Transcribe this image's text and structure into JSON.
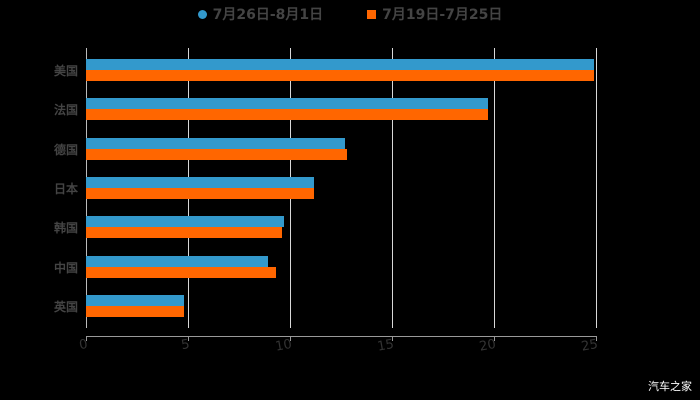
{
  "chart_data": {
    "type": "bar",
    "orientation": "horizontal",
    "title": "",
    "xlabel": "",
    "ylabel": "",
    "categories": [
      "美国",
      "法国",
      "德国",
      "日本",
      "韩国",
      "中国",
      "英国"
    ],
    "series": [
      {
        "name": "7月26日-8月1日",
        "color": "#3399cc",
        "values": [
          24.9,
          19.7,
          12.7,
          11.2,
          9.7,
          8.9,
          4.8
        ]
      },
      {
        "name": "7月19日-7月25日",
        "color": "#ff6600",
        "values": [
          24.9,
          19.7,
          12.8,
          11.2,
          9.6,
          9.3,
          4.8
        ]
      }
    ],
    "xlim": [
      0,
      25
    ],
    "x_ticks": [
      "0",
      "5",
      "10",
      "15",
      "20",
      "25"
    ],
    "grid": true,
    "legend_position": "top"
  },
  "legend": [
    {
      "label": "7月26日-8月1日",
      "color": "#3399cc",
      "marker": "circle"
    },
    {
      "label": "7月19日-7月25日",
      "color": "#ff6600",
      "marker": "square"
    }
  ],
  "watermark": "汽车之家"
}
